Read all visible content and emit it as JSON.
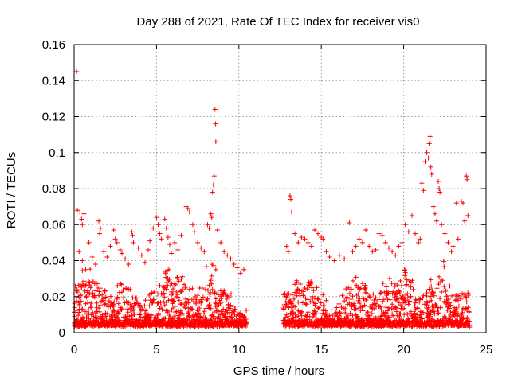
{
  "chart_data": {
    "type": "scatter",
    "title": "Day 288 of 2021, Rate Of TEC Index for receiver vis0",
    "xlabel": "GPS time / hours",
    "ylabel": "ROTI / TECUs",
    "xlim": [
      0,
      25
    ],
    "ylim": [
      0,
      0.16
    ],
    "xticks": [
      0,
      5,
      10,
      15,
      20,
      25
    ],
    "xtick_labels": [
      "0",
      "5",
      "10",
      "15",
      "20",
      "25"
    ],
    "yticks": [
      0,
      0.02,
      0.04,
      0.06,
      0.08,
      0.1,
      0.12,
      0.14,
      0.16
    ],
    "ytick_labels": [
      "0",
      "0.02",
      "0.04",
      "0.06",
      "0.08",
      "0.1",
      "0.12",
      "0.14",
      "0.16"
    ],
    "grid": true,
    "marker": "plus",
    "color": "#ff0000",
    "data_gap_hours": [
      10.5,
      12.7
    ],
    "points": [
      [
        0.15,
        0.145
      ],
      [
        0.2,
        0.068
      ],
      [
        0.35,
        0.067
      ],
      [
        0.45,
        0.063
      ],
      [
        0.5,
        0.06
      ],
      [
        0.6,
        0.066
      ],
      [
        0.3,
        0.045
      ],
      [
        0.5,
        0.04
      ],
      [
        0.7,
        0.035
      ],
      [
        0.9,
        0.05
      ],
      [
        1.1,
        0.042
      ],
      [
        1.3,
        0.038
      ],
      [
        1.5,
        0.062
      ],
      [
        1.6,
        0.058
      ],
      [
        1.55,
        0.055
      ],
      [
        1.8,
        0.045
      ],
      [
        2.0,
        0.042
      ],
      [
        2.2,
        0.048
      ],
      [
        2.4,
        0.057
      ],
      [
        2.5,
        0.052
      ],
      [
        2.6,
        0.05
      ],
      [
        2.8,
        0.046
      ],
      [
        2.9,
        0.044
      ],
      [
        3.1,
        0.041
      ],
      [
        3.3,
        0.038
      ],
      [
        3.5,
        0.056
      ],
      [
        3.55,
        0.054
      ],
      [
        3.6,
        0.05
      ],
      [
        3.9,
        0.047
      ],
      [
        4.1,
        0.043
      ],
      [
        4.3,
        0.039
      ],
      [
        4.5,
        0.046
      ],
      [
        4.6,
        0.051
      ],
      [
        4.8,
        0.058
      ],
      [
        5.0,
        0.064
      ],
      [
        5.1,
        0.06
      ],
      [
        5.2,
        0.055
      ],
      [
        5.3,
        0.052
      ],
      [
        5.5,
        0.063
      ],
      [
        5.6,
        0.058
      ],
      [
        5.7,
        0.053
      ],
      [
        5.8,
        0.049
      ],
      [
        5.9,
        0.044
      ],
      [
        6.1,
        0.05
      ],
      [
        6.3,
        0.046
      ],
      [
        6.5,
        0.054
      ],
      [
        6.8,
        0.07
      ],
      [
        6.9,
        0.069
      ],
      [
        7.0,
        0.067
      ],
      [
        7.2,
        0.06
      ],
      [
        7.3,
        0.056
      ],
      [
        7.5,
        0.05
      ],
      [
        7.7,
        0.047
      ],
      [
        7.9,
        0.045
      ],
      [
        8.1,
        0.06
      ],
      [
        8.2,
        0.058
      ],
      [
        8.3,
        0.066
      ],
      [
        8.35,
        0.064
      ],
      [
        8.4,
        0.078
      ],
      [
        8.45,
        0.082
      ],
      [
        8.5,
        0.087
      ],
      [
        8.55,
        0.124
      ],
      [
        8.58,
        0.116
      ],
      [
        8.6,
        0.106
      ],
      [
        8.7,
        0.057
      ],
      [
        8.9,
        0.05
      ],
      [
        9.1,
        0.045
      ],
      [
        9.3,
        0.043
      ],
      [
        9.5,
        0.041
      ],
      [
        9.7,
        0.038
      ],
      [
        9.9,
        0.036
      ],
      [
        10.1,
        0.033
      ],
      [
        10.3,
        0.035
      ],
      [
        12.9,
        0.048
      ],
      [
        13.0,
        0.045
      ],
      [
        13.1,
        0.076
      ],
      [
        13.15,
        0.074
      ],
      [
        13.2,
        0.067
      ],
      [
        13.4,
        0.055
      ],
      [
        13.6,
        0.05
      ],
      [
        13.8,
        0.053
      ],
      [
        14.0,
        0.052
      ],
      [
        14.2,
        0.05
      ],
      [
        14.4,
        0.048
      ],
      [
        14.6,
        0.057
      ],
      [
        14.8,
        0.055
      ],
      [
        15.0,
        0.053
      ],
      [
        15.1,
        0.052
      ],
      [
        15.3,
        0.045
      ],
      [
        15.5,
        0.042
      ],
      [
        15.8,
        0.04
      ],
      [
        16.1,
        0.043
      ],
      [
        16.4,
        0.041
      ],
      [
        16.7,
        0.061
      ],
      [
        16.9,
        0.045
      ],
      [
        17.1,
        0.048
      ],
      [
        17.3,
        0.052
      ],
      [
        17.5,
        0.05
      ],
      [
        17.7,
        0.057
      ],
      [
        17.9,
        0.048
      ],
      [
        18.1,
        0.045
      ],
      [
        18.3,
        0.046
      ],
      [
        18.5,
        0.055
      ],
      [
        18.7,
        0.054
      ],
      [
        18.9,
        0.05
      ],
      [
        19.1,
        0.047
      ],
      [
        19.3,
        0.045
      ],
      [
        19.5,
        0.043
      ],
      [
        19.7,
        0.048
      ],
      [
        19.9,
        0.05
      ],
      [
        20.1,
        0.06
      ],
      [
        20.3,
        0.056
      ],
      [
        20.5,
        0.065
      ],
      [
        20.7,
        0.055
      ],
      [
        20.9,
        0.05
      ],
      [
        21.0,
        0.052
      ],
      [
        21.1,
        0.083
      ],
      [
        21.2,
        0.079
      ],
      [
        21.3,
        0.095
      ],
      [
        21.4,
        0.1
      ],
      [
        21.5,
        0.097
      ],
      [
        21.55,
        0.105
      ],
      [
        21.6,
        0.109
      ],
      [
        21.65,
        0.092
      ],
      [
        21.7,
        0.088
      ],
      [
        21.8,
        0.07
      ],
      [
        21.9,
        0.066
      ],
      [
        22.0,
        0.062
      ],
      [
        22.1,
        0.084
      ],
      [
        22.15,
        0.08
      ],
      [
        22.2,
        0.078
      ],
      [
        22.3,
        0.06
      ],
      [
        22.5,
        0.055
      ],
      [
        22.7,
        0.05
      ],
      [
        22.9,
        0.045
      ],
      [
        23.0,
        0.048
      ],
      [
        23.2,
        0.072
      ],
      [
        23.3,
        0.052
      ],
      [
        23.5,
        0.073
      ],
      [
        23.6,
        0.072
      ],
      [
        23.7,
        0.062
      ],
      [
        23.8,
        0.087
      ],
      [
        23.85,
        0.085
      ],
      [
        23.9,
        0.065
      ]
    ]
  }
}
